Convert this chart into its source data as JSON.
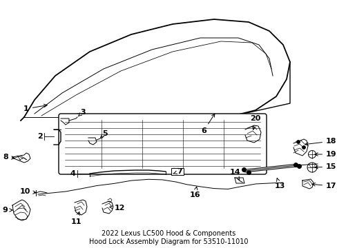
{
  "title": "2022 Lexus LC500 Hood & Components\nHood Lock Assembly Diagram for 53510-11010",
  "bg_color": "#ffffff",
  "line_color": "#000000",
  "label_color": "#000000",
  "font_size": 8,
  "title_fontsize": 7,
  "figsize": [
    4.89,
    3.6
  ],
  "dpi": 100
}
